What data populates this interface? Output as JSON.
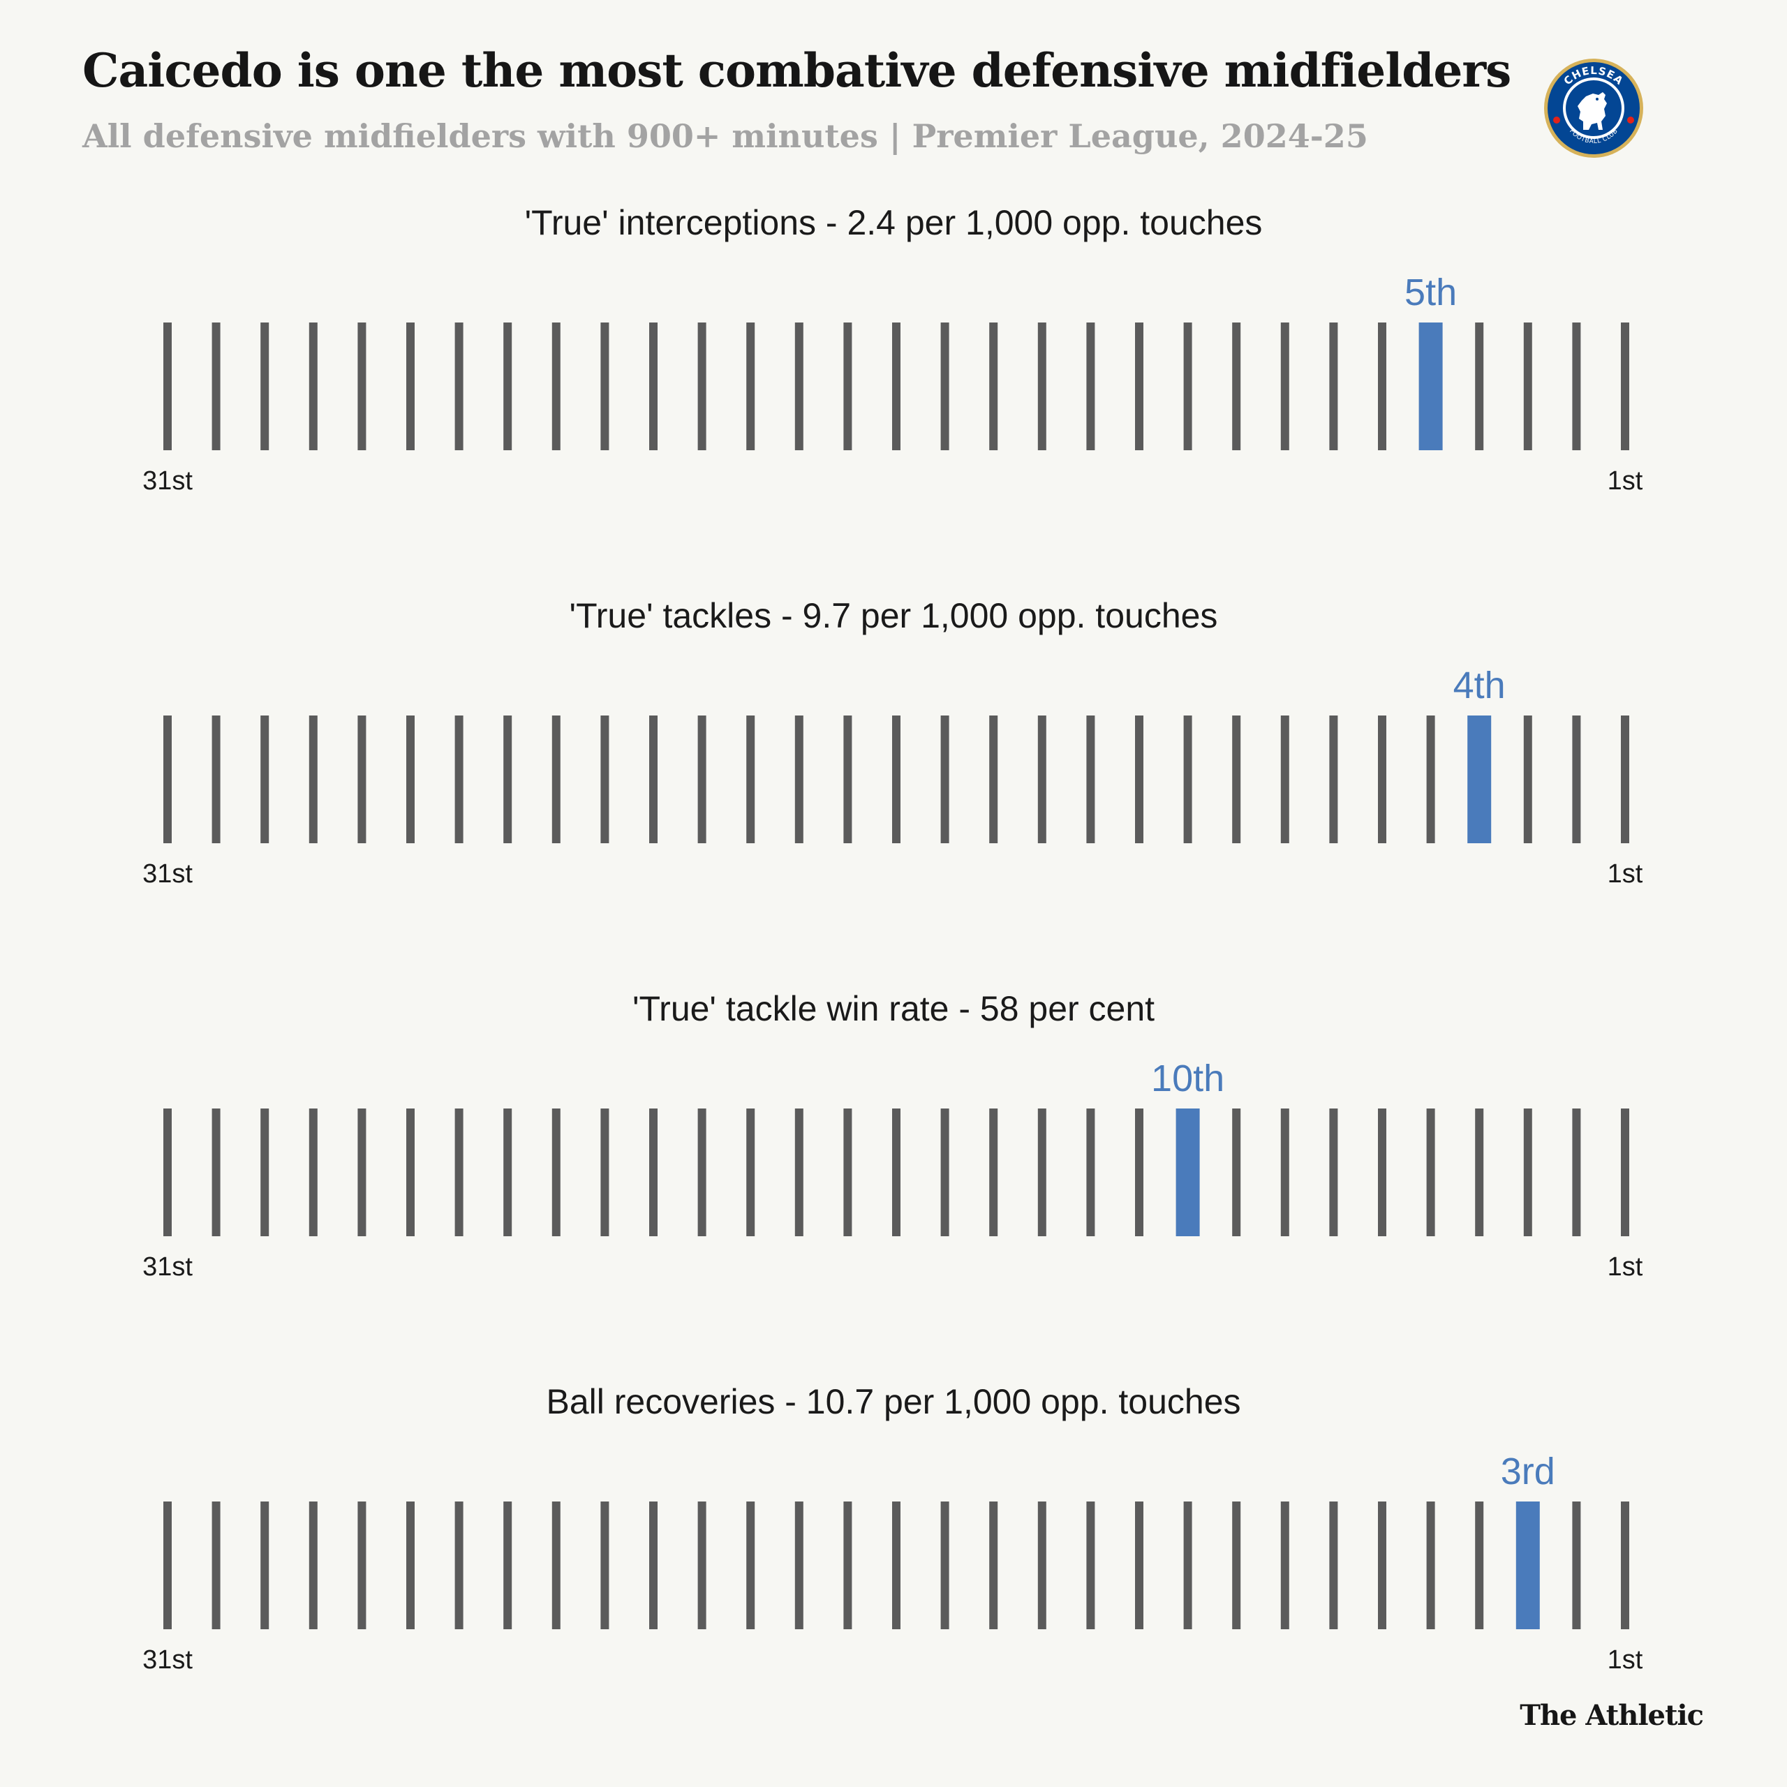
{
  "header": {
    "title": "Caicedo is one the most combative defensive midfielders",
    "subtitle": "All defensive midfielders with 900+ minutes | Premier League, 2024-25",
    "logo_alt": "Chelsea Football Club crest",
    "logo_text_top": "CHELSEA",
    "logo_text_bottom": "FOOTBALL CLUB"
  },
  "colors": {
    "background": "#f7f7f3",
    "tick": "#5b5b5b",
    "highlight": "#4a7bbb"
  },
  "chart_data": [
    {
      "type": "strip",
      "title": "'True' interceptions - 2.4 per 1,000 opp. touches",
      "total_players": 31,
      "highlight_rank": 5,
      "highlight_label": "5th",
      "left_label": "31st",
      "right_label": "1st"
    },
    {
      "type": "strip",
      "title": "'True' tackles - 9.7 per 1,000 opp. touches",
      "total_players": 31,
      "highlight_rank": 4,
      "highlight_label": "4th",
      "left_label": "31st",
      "right_label": "1st"
    },
    {
      "type": "strip",
      "title": "'True' tackle win rate - 58 per cent",
      "total_players": 31,
      "highlight_rank": 10,
      "highlight_label": "10th",
      "left_label": "31st",
      "right_label": "1st"
    },
    {
      "type": "strip",
      "title": "Ball recoveries - 10.7 per 1,000 opp. touches",
      "total_players": 31,
      "highlight_rank": 3,
      "highlight_label": "3rd",
      "left_label": "31st",
      "right_label": "1st"
    }
  ],
  "footer": {
    "brand": "The Athletic"
  }
}
